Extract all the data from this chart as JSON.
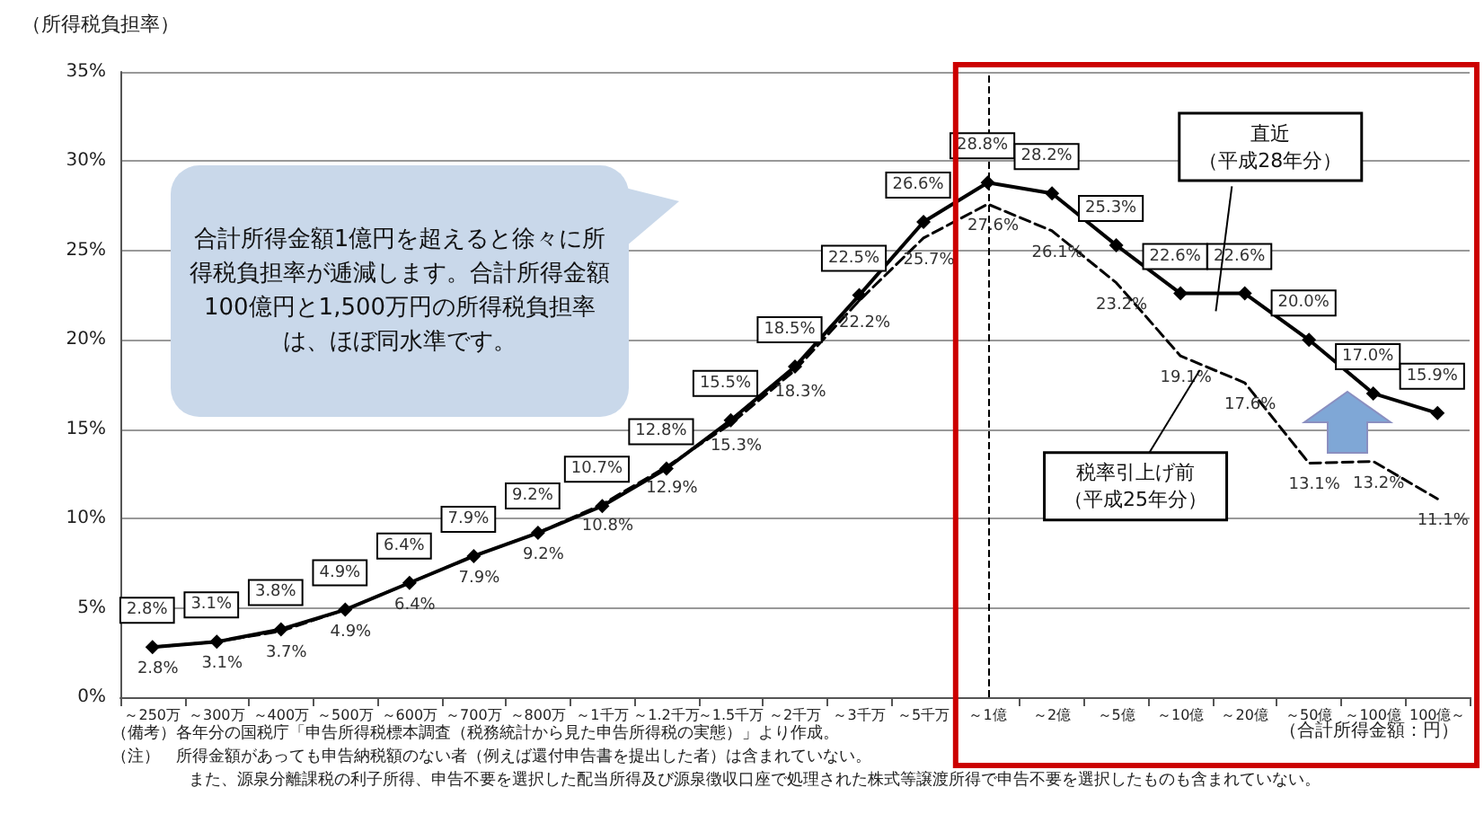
{
  "chart_data": {
    "type": "line",
    "ylabel": "（所得税負担率）",
    "xlabel": "（合計所得金額：円）",
    "categories": [
      "～250万",
      "～300万",
      "～400万",
      "～500万",
      "～600万",
      "～700万",
      "～800万",
      "～1千万",
      "～1.2千万",
      "～1.5千万",
      "～2千万",
      "～3千万",
      "～5千万",
      "～1億",
      "～2億",
      "～5億",
      "～10億",
      "～20億",
      "～50億",
      "～100億",
      "100億～"
    ],
    "series": [
      {
        "name": "直近（平成28年分）",
        "color": "#000000",
        "marker": "diamond",
        "line_style": "solid",
        "values": [
          2.8,
          3.1,
          3.8,
          4.9,
          6.4,
          7.9,
          9.2,
          10.7,
          12.8,
          15.5,
          18.5,
          22.5,
          26.6,
          28.8,
          28.2,
          25.3,
          22.6,
          22.6,
          20.0,
          17.0,
          15.9
        ],
        "value_labels": [
          "2.8%",
          "3.1%",
          "3.8%",
          "4.9%",
          "6.4%",
          "7.9%",
          "9.2%",
          "10.7%",
          "12.8%",
          "15.5%",
          "18.5%",
          "22.5%",
          "26.6%",
          "28.8%",
          "28.2%",
          "25.3%",
          "22.6%",
          "22.6%",
          "20.0%",
          "17.0%",
          "15.9%"
        ]
      },
      {
        "name": "税率引上げ前（平成25年分）",
        "color": "#000000",
        "marker": "none",
        "line_style": "dashed",
        "values": [
          2.8,
          3.1,
          3.7,
          4.9,
          6.4,
          7.9,
          9.2,
          10.8,
          12.9,
          15.3,
          18.3,
          22.2,
          25.7,
          27.6,
          26.1,
          23.2,
          19.1,
          17.6,
          13.1,
          13.2,
          11.1
        ],
        "value_labels": [
          "2.8%",
          "3.1%",
          "3.7%",
          "4.9%",
          "6.4%",
          "7.9%",
          "9.2%",
          "10.8%",
          "12.9%",
          "15.3%",
          "18.3%",
          "22.2%",
          "25.7%",
          "27.6%",
          "26.1%",
          "23.2%",
          "19.1%",
          "17.6%",
          "13.1%",
          "13.2%",
          "11.1%"
        ]
      }
    ],
    "ylim": [
      0,
      35
    ],
    "yticks": [
      {
        "value": 0,
        "label": "0%"
      },
      {
        "value": 5,
        "label": "5%"
      },
      {
        "value": 10,
        "label": "10%"
      },
      {
        "value": 15,
        "label": "15%"
      },
      {
        "value": 20,
        "label": "20%"
      },
      {
        "value": 25,
        "label": "25%"
      },
      {
        "value": 30,
        "label": "30%"
      },
      {
        "value": 35,
        "label": "35%"
      }
    ],
    "grid": "y",
    "ref_lines": [
      {
        "axis": "x",
        "value": "～1億",
        "line_style": "dashed"
      }
    ],
    "annotations": [
      "合計所得金額1億円を超えると徐々に所得税負担率が逓減します。合計所得金額100億円と1,500万円の所得税負担率は、ほぼ同水準です。",
      "（備考）各年分の国税庁「申告所得税標本調査（税務統計から見た申告所得税の実態）」より作成。",
      "（注）　所得金額があっても申告納税額のない者（例えば還付申告書を提出した者）は含まれていない。",
      "また、源泉分離課税の利子所得、申告不要を選択した配当所得及び源泉徴収口座で処理された株式等譲渡所得で申告不要を選択したものも含まれていない。"
    ]
  }
}
